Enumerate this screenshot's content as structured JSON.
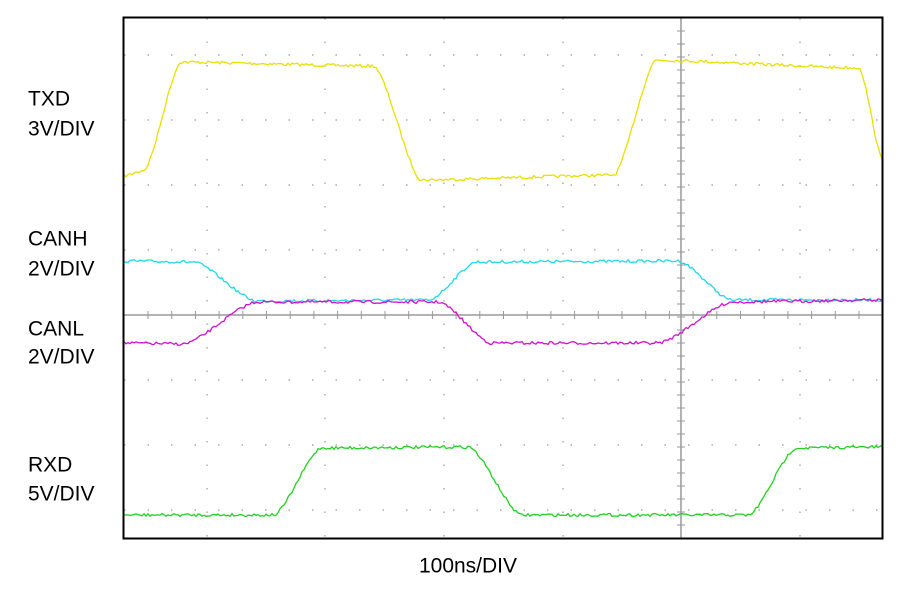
{
  "channels": [
    {
      "name": "TXD",
      "scale": "3V/DIV"
    },
    {
      "name": "CANH",
      "scale": "2V/DIV"
    },
    {
      "name": "CANL",
      "scale": "2V/DIV"
    },
    {
      "name": "RXD",
      "scale": "5V/DIV"
    }
  ],
  "timebase": "100ns/DIV"
}
